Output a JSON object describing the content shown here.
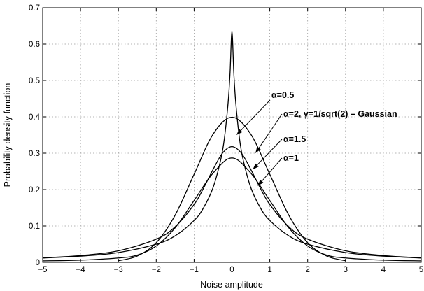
{
  "chart_data": {
    "type": "line",
    "title": "",
    "xlabel": "Noise amplitude",
    "ylabel": "Probability density function",
    "xlim": [
      -5,
      5
    ],
    "ylim": [
      0,
      0.7
    ],
    "xticks": [
      -5,
      -4,
      -3,
      -2,
      -1,
      0,
      1,
      2,
      3,
      4,
      5
    ],
    "yticks": [
      0,
      0.1,
      0.2,
      0.3,
      0.4,
      0.5,
      0.6,
      0.7
    ],
    "xtick_labels": [
      "−5",
      "−4",
      "−3",
      "−2",
      "−1",
      "0",
      "1",
      "2",
      "3",
      "4",
      "5"
    ],
    "ytick_labels": [
      "0",
      "0.1",
      "0.2",
      "0.3",
      "0.4",
      "0.5",
      "0.6",
      "0.7"
    ],
    "grid": true,
    "series": [
      {
        "name": "α=0.5",
        "x": [
          -5,
          -4,
          -3,
          -2,
          -1.5,
          -1,
          -0.75,
          -0.5,
          -0.3,
          -0.2,
          -0.1,
          -0.05,
          0,
          0.05,
          0.1,
          0.2,
          0.3,
          0.5,
          0.75,
          1,
          1.5,
          2,
          3,
          4,
          5
        ],
        "y": [
          0.012,
          0.017,
          0.027,
          0.05,
          0.073,
          0.115,
          0.15,
          0.205,
          0.28,
          0.34,
          0.44,
          0.52,
          0.635,
          0.52,
          0.44,
          0.34,
          0.28,
          0.205,
          0.15,
          0.115,
          0.073,
          0.05,
          0.027,
          0.017,
          0.012
        ]
      },
      {
        "name": "α=2, γ=1/sqrt(2) – Gaussian",
        "x": [
          -3,
          -2.5,
          -2,
          -1.5,
          -1,
          -0.5,
          0,
          0.5,
          1,
          1.5,
          2,
          2.5,
          3
        ],
        "y": [
          0.0044,
          0.0175,
          0.054,
          0.13,
          0.242,
          0.352,
          0.399,
          0.352,
          0.242,
          0.13,
          0.054,
          0.0175,
          0.0044
        ]
      },
      {
        "name": "α=1.5",
        "x": [
          -5,
          -4,
          -3,
          -2.5,
          -2,
          -1.5,
          -1,
          -0.5,
          0,
          0.5,
          1,
          1.5,
          2,
          2.5,
          3,
          4,
          5
        ],
        "y": [
          0.004,
          0.006,
          0.012,
          0.02,
          0.045,
          0.095,
          0.17,
          0.245,
          0.287,
          0.245,
          0.17,
          0.095,
          0.045,
          0.02,
          0.012,
          0.006,
          0.004
        ]
      },
      {
        "name": "α=1",
        "x": [
          -5,
          -4,
          -3,
          -2,
          -1.5,
          -1,
          -0.75,
          -0.5,
          -0.25,
          0,
          0.25,
          0.5,
          0.75,
          1,
          1.5,
          2,
          3,
          4,
          5
        ],
        "y": [
          0.0122,
          0.0187,
          0.0318,
          0.0637,
          0.0979,
          0.159,
          0.204,
          0.255,
          0.3,
          0.318,
          0.3,
          0.255,
          0.204,
          0.159,
          0.0979,
          0.0637,
          0.0318,
          0.0187,
          0.0122
        ]
      }
    ],
    "annotations": [
      {
        "text": "α=0.5",
        "points_to": [
          0.12,
          0.35
        ]
      },
      {
        "text": "α=2, γ=1/sqrt(2) – Gaussian",
        "points_to": [
          0.62,
          0.3
        ]
      },
      {
        "text": "α=1.5",
        "points_to": [
          0.55,
          0.255
        ]
      },
      {
        "text": "α=1",
        "points_to": [
          0.68,
          0.21
        ]
      }
    ]
  }
}
